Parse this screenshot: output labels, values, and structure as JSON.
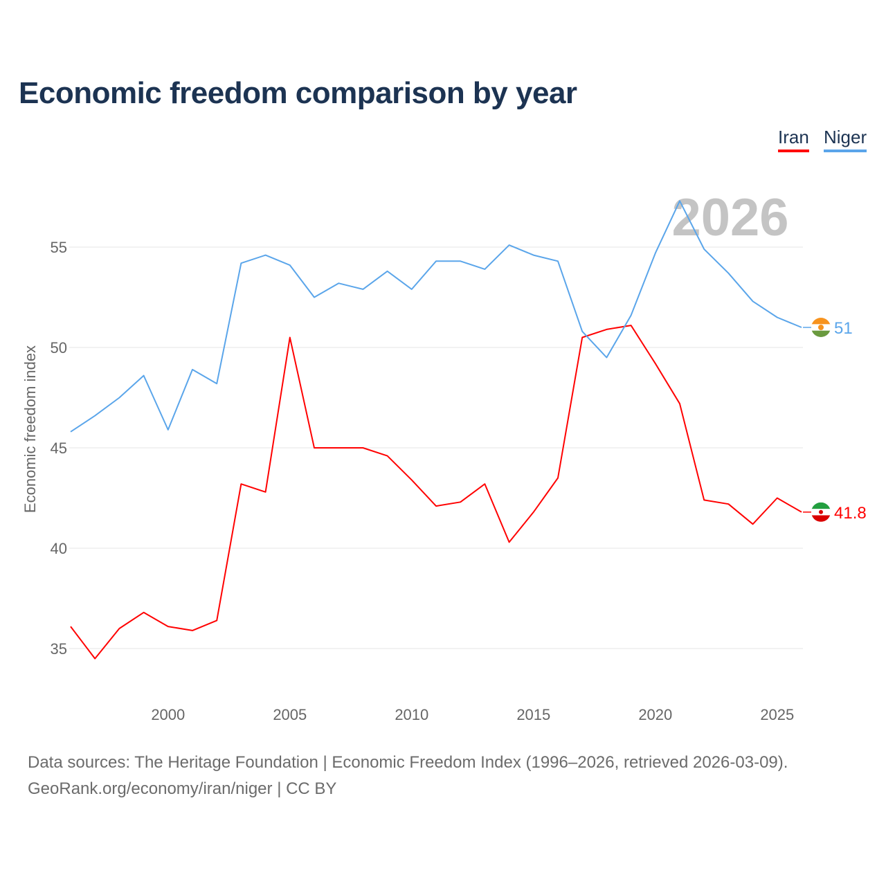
{
  "chart_data": {
    "type": "line",
    "title": "Economic freedom comparison by year",
    "xlabel": "",
    "ylabel": "Economic freedom index",
    "xlim": [
      1996,
      2026
    ],
    "ylim": [
      33,
      58
    ],
    "yticks": [
      35,
      40,
      45,
      50,
      55
    ],
    "xticks": [
      2000,
      2005,
      2010,
      2015,
      2020,
      2025
    ],
    "grid": true,
    "legend_position": "top-right",
    "watermark_year": "2026",
    "x": [
      1996,
      1997,
      1998,
      1999,
      2000,
      2001,
      2002,
      2003,
      2004,
      2005,
      2006,
      2007,
      2008,
      2009,
      2010,
      2011,
      2012,
      2013,
      2014,
      2015,
      2016,
      2017,
      2018,
      2019,
      2020,
      2021,
      2022,
      2023,
      2024,
      2025,
      2026
    ],
    "series": [
      {
        "name": "Iran",
        "color": "#ff0000",
        "end_label": "41.8",
        "values": [
          36.1,
          34.5,
          36.0,
          36.8,
          36.1,
          35.9,
          36.4,
          43.2,
          42.8,
          50.5,
          45.0,
          45.0,
          45.0,
          44.6,
          43.4,
          42.1,
          42.3,
          43.2,
          40.3,
          41.8,
          43.5,
          50.5,
          50.9,
          51.1,
          49.2,
          47.2,
          42.4,
          42.2,
          41.2,
          42.5,
          41.8
        ]
      },
      {
        "name": "Niger",
        "color": "#5aa5ea",
        "end_label": "51",
        "values": [
          45.8,
          46.6,
          47.5,
          48.6,
          45.9,
          48.9,
          48.2,
          54.2,
          54.6,
          54.1,
          52.5,
          53.2,
          52.9,
          53.8,
          52.9,
          54.3,
          54.3,
          53.9,
          55.1,
          54.6,
          54.3,
          50.8,
          49.5,
          51.6,
          54.7,
          57.3,
          54.9,
          53.7,
          52.3,
          51.5,
          51.0
        ]
      }
    ]
  },
  "footer": {
    "line1": "Data sources: The Heritage Foundation | Economic Freedom Index (1996–2026, retrieved 2026-03-09).",
    "line2": "GeoRank.org/economy/iran/niger | CC BY"
  }
}
